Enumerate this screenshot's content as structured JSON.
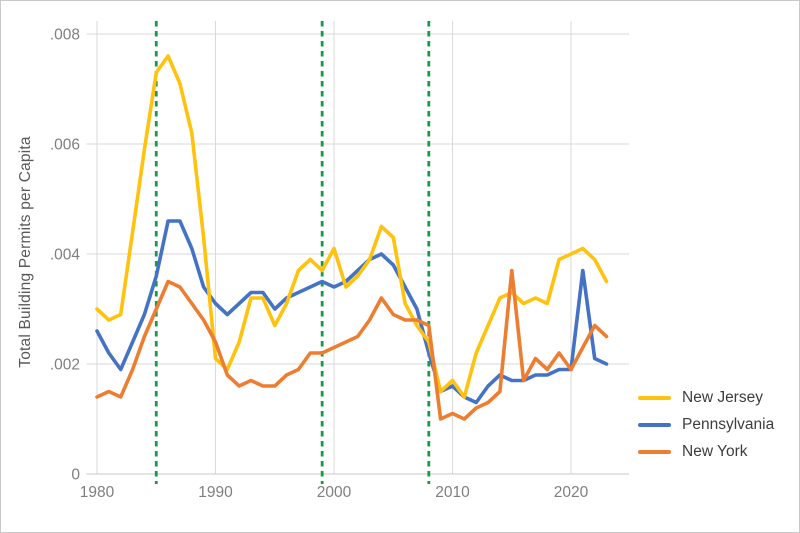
{
  "figure": {
    "background": "#ffffff",
    "border_color": "#c9c9c9",
    "grid_color": "#d9d9d9",
    "axis_line_color": "#c8c8c8",
    "tick_label_color": "#7f7f7f",
    "title_color": "#595959",
    "legend_text_color": "#3d3d3d"
  },
  "chart_data": {
    "type": "line",
    "title": "",
    "xlabel": "",
    "ylabel": "Total Building Permits per Capita",
    "grid": true,
    "legend_position": "bottom-right",
    "xlim": [
      1979,
      2024
    ],
    "ylim": [
      0,
      0.008
    ],
    "x_ticks": [
      {
        "value": 1980,
        "label": "1980"
      },
      {
        "value": 1990,
        "label": "1990"
      },
      {
        "value": 2000,
        "label": "2000"
      },
      {
        "value": 2010,
        "label": "2010"
      },
      {
        "value": 2020,
        "label": "2020"
      }
    ],
    "y_ticks": [
      {
        "value": 0,
        "label": "0"
      },
      {
        "value": 0.002,
        "label": ".002"
      },
      {
        "value": 0.004,
        "label": ".004"
      },
      {
        "value": 0.006,
        "label": ".006"
      },
      {
        "value": 0.008,
        "label": ".008"
      }
    ],
    "vlines": {
      "color": "#169C46",
      "style": "dashed",
      "x": [
        1985,
        1999,
        2008
      ]
    },
    "x": [
      1980,
      1981,
      1982,
      1983,
      1984,
      1985,
      1986,
      1987,
      1988,
      1989,
      1990,
      1991,
      1992,
      1993,
      1994,
      1995,
      1996,
      1997,
      1998,
      1999,
      2000,
      2001,
      2002,
      2003,
      2004,
      2005,
      2006,
      2007,
      2008,
      2009,
      2010,
      2011,
      2012,
      2013,
      2014,
      2015,
      2016,
      2017,
      2018,
      2019,
      2020,
      2021,
      2022,
      2023
    ],
    "series": [
      {
        "name": "New Jersey",
        "color": "#FFC20E",
        "z": 2,
        "values": [
          0.003,
          0.0028,
          0.0029,
          0.0044,
          0.0059,
          0.0073,
          0.0076,
          0.0071,
          0.0062,
          0.0043,
          0.0021,
          0.0019,
          0.0024,
          0.0032,
          0.0032,
          0.0027,
          0.0031,
          0.0037,
          0.0039,
          0.0037,
          0.0041,
          0.0034,
          0.0036,
          0.0039,
          0.0045,
          0.0043,
          0.0031,
          0.0027,
          0.0024,
          0.0015,
          0.0017,
          0.0014,
          0.0022,
          0.0027,
          0.0032,
          0.0033,
          0.0031,
          0.0032,
          0.0031,
          0.0039,
          0.004,
          0.0041,
          0.0039,
          0.0035
        ]
      },
      {
        "name": "Pennsylvania",
        "color": "#4472C4",
        "z": 1,
        "values": [
          0.0026,
          0.0022,
          0.0019,
          0.0024,
          0.0029,
          0.0036,
          0.0046,
          0.0046,
          0.0041,
          0.0034,
          0.0031,
          0.0029,
          0.0031,
          0.0033,
          0.0033,
          0.003,
          0.0032,
          0.0033,
          0.0034,
          0.0035,
          0.0034,
          0.0035,
          0.0037,
          0.0039,
          0.004,
          0.0038,
          0.0034,
          0.003,
          0.0022,
          0.0015,
          0.0016,
          0.0014,
          0.0013,
          0.0016,
          0.0018,
          0.0017,
          0.0017,
          0.0018,
          0.0018,
          0.0019,
          0.0019,
          0.0037,
          0.0021,
          0.002
        ]
      },
      {
        "name": "New York",
        "color": "#ED7D31",
        "z": 3,
        "values": [
          0.0014,
          0.0015,
          0.0014,
          0.0019,
          0.0025,
          0.003,
          0.0035,
          0.0034,
          0.0031,
          0.0028,
          0.0024,
          0.0018,
          0.0016,
          0.0017,
          0.0016,
          0.0016,
          0.0018,
          0.0019,
          0.0022,
          0.0022,
          0.0023,
          0.0024,
          0.0025,
          0.0028,
          0.0032,
          0.0029,
          0.0028,
          0.0028,
          0.0027,
          0.001,
          0.0011,
          0.001,
          0.0012,
          0.0013,
          0.0015,
          0.0037,
          0.0017,
          0.0021,
          0.0019,
          0.0022,
          0.0019,
          0.0023,
          0.0027,
          0.0025
        ]
      }
    ]
  }
}
